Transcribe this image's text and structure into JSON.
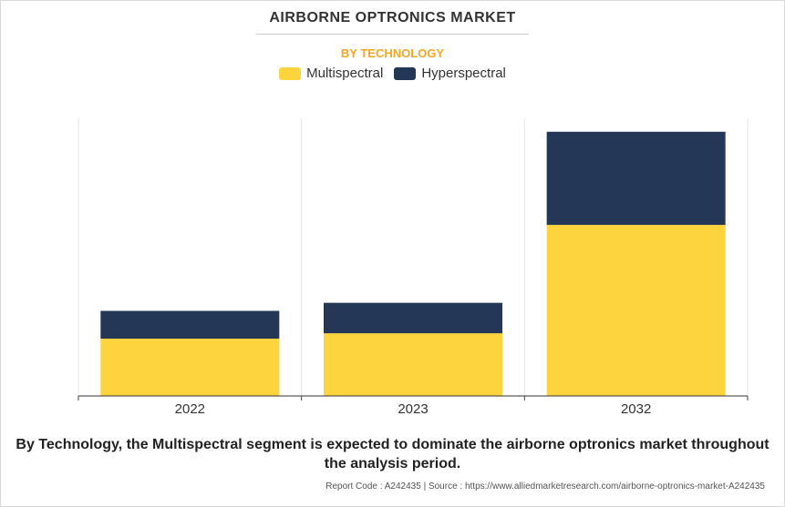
{
  "chart_data": {
    "type": "bar",
    "stacked": true,
    "title": "AIRBORNE OPTRONICS MARKET",
    "subtitle": "BY TECHNOLOGY",
    "categories": [
      "2022",
      "2023",
      "2032"
    ],
    "series": [
      {
        "name": "Multispectral",
        "color": "#fdd33e",
        "values": [
          64,
          70,
          191
        ]
      },
      {
        "name": "Hyperspectral",
        "color": "#243757",
        "values": [
          31,
          34,
          104
        ]
      }
    ],
    "ylim": [
      0,
      310
    ],
    "grid": "vertical",
    "legend": "top-center",
    "xlabel": "",
    "ylabel": ""
  },
  "footnote": "By Technology, the Multispectral segment is expected to dominate the airborne optronics market throughout the analysis period.",
  "report_line": "Report Code : A242435  |  Source : https://www.alliedmarketresearch.com/airborne-optronics-market-A242435"
}
